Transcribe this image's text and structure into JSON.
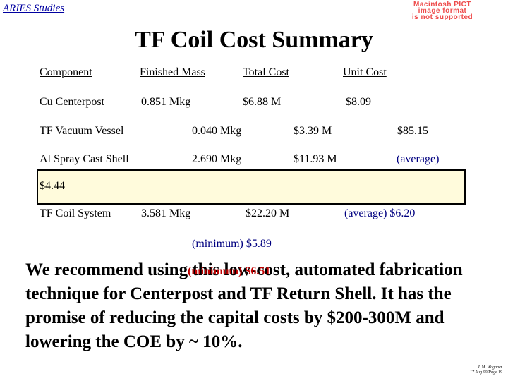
{
  "header": {
    "link_label": "ARIES Studies",
    "pict_notice": [
      "Macintosh PICT",
      "image format",
      "is not supported"
    ]
  },
  "title": "TF Coil Cost Summary",
  "table": {
    "headers": [
      "Component",
      "Finished Mass",
      "Total Cost",
      "Unit Cost"
    ],
    "rows": [
      [
        "Cu Centerpost",
        "0.851 Mkg",
        "$6.88 M",
        "$8.09"
      ],
      [
        "TF Vacuum Vessel",
        "0.040 Mkg",
        "$3.39 M",
        "$85.15"
      ],
      [
        "Al Spray Cast Shell",
        "2.690 Mkg",
        "$11.93 M",
        "(average)"
      ]
    ],
    "shell_extra": "$4.44",
    "system": {
      "label": "TF Coil System",
      "mass": "3.581 Mkg",
      "cost": "$22.20 M",
      "unit_average": "(average)  $6.20"
    },
    "minimum_note": "(minimum) $5.89"
  },
  "paragraph": "We recommend using this low-cost, automated fabrication technique for Centerpost and TF Return Shell.  It has the promise of reducing the capital costs by $200-300M and lowering the COE by ~ 10%.",
  "overlay_minimum": "(minimum) $6.51",
  "footer": [
    "L.M. Waganer",
    "17 Aug 00/Page 19"
  ],
  "colors": {
    "link": "#0000a0",
    "notice": "#ee4b4b",
    "accent_red": "#c00000",
    "accent_blue": "#000080",
    "box_fill": "#fffbdc"
  }
}
